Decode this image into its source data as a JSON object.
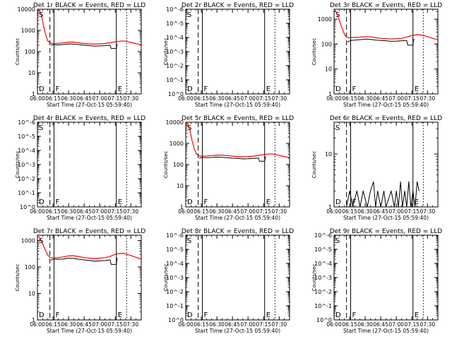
{
  "page": {
    "background": "#ffffff",
    "axis_color": "#000000",
    "events_color": "#000000",
    "lld_color": "#ff0000"
  },
  "shared": {
    "xlabel": "Start Time (27-Oct-15 05:59:40)",
    "ylabel": "Counts/sec",
    "x_ticks": [
      "06:00",
      "06:15",
      "06:30",
      "06:45",
      "07:00",
      "07:15",
      "07:30"
    ],
    "x_range_min": [
      0,
      100
    ],
    "markers": {
      "dashed_min": 12,
      "solid_lines_min": [
        16,
        76
      ],
      "dotted_min": 86,
      "labels": [
        "D",
        "S",
        "F",
        "E"
      ]
    }
  },
  "chart_data": [
    {
      "title": "Det 1r BLACK = Events, RED = LLD",
      "type": "line",
      "y_tick_labels": [
        "1",
        "10",
        "100",
        "1000",
        "10000"
      ],
      "y_log_range": [
        0,
        4
      ],
      "marker_labels": {
        "D": "D",
        "S": "S",
        "F": "F",
        "E": "E"
      },
      "series": [
        {
          "color": "red",
          "x": [
            0,
            2,
            4,
            6,
            8,
            10,
            12,
            14,
            16,
            20,
            25,
            30,
            35,
            40,
            45,
            50,
            55,
            60,
            65,
            70,
            75,
            78,
            82,
            86,
            90,
            95,
            100
          ],
          "y": [
            10000,
            9000,
            5000,
            1500,
            600,
            320,
            260,
            240,
            240,
            245,
            260,
            280,
            280,
            260,
            240,
            230,
            225,
            230,
            240,
            260,
            290,
            300,
            320,
            300,
            270,
            240,
            210
          ]
        },
        {
          "color": "black",
          "x": [
            13,
            16,
            20,
            25,
            30,
            35,
            40,
            45,
            50,
            55,
            60,
            65,
            70,
            71,
            72,
            74,
            75,
            76,
            76.5,
            77
          ],
          "y": [
            200,
            210,
            205,
            215,
            230,
            225,
            210,
            200,
            190,
            180,
            185,
            190,
            200,
            140,
            140,
            140,
            140,
            140,
            200,
            230
          ]
        }
      ]
    },
    {
      "title": "Det 2r BLACK = Events, RED = LLD",
      "type": "line",
      "y_tick_labels": [
        "10^0",
        "10^-1",
        "10^-2",
        "10^-3",
        "10^-4",
        "10^-5",
        "10^-6"
      ],
      "y_log_range": [
        0,
        6
      ],
      "marker_labels": {
        "D": "D",
        "S": "S",
        "F": "F",
        "E": "E"
      },
      "series": []
    },
    {
      "title": "Det 3r BLACK = Events, RED = LLD",
      "type": "line",
      "y_tick_labels": [
        "1",
        "10",
        "100",
        "1000"
      ],
      "y_log_range": [
        0,
        3.4
      ],
      "marker_labels": {
        "D": "D",
        "S": "S",
        "F": "F",
        "E": "E"
      },
      "series": [
        {
          "color": "red",
          "x": [
            0,
            2,
            4,
            6,
            8,
            10,
            12,
            14,
            16,
            20,
            25,
            30,
            35,
            40,
            45,
            50,
            55,
            60,
            65,
            70,
            75,
            78,
            82,
            86,
            90,
            95,
            100
          ],
          "y": [
            2500,
            2000,
            1200,
            700,
            400,
            250,
            190,
            180,
            180,
            185,
            190,
            200,
            195,
            180,
            170,
            165,
            160,
            165,
            170,
            190,
            220,
            230,
            240,
            220,
            200,
            170,
            150
          ]
        },
        {
          "color": "black",
          "x": [
            13,
            16,
            20,
            25,
            30,
            35,
            40,
            45,
            50,
            55,
            60,
            65,
            70,
            71,
            72,
            74,
            75,
            76,
            76.5,
            77
          ],
          "y": [
            120,
            140,
            145,
            150,
            160,
            155,
            145,
            140,
            135,
            130,
            132,
            135,
            140,
            90,
            90,
            90,
            90,
            90,
            140,
            160
          ]
        }
      ]
    },
    {
      "title": "Det 4r BLACK = Events, RED = LLD",
      "type": "line",
      "y_tick_labels": [
        "10^0",
        "10^-1",
        "10^-2",
        "10^-3",
        "10^-4",
        "10^-5",
        "10^-6"
      ],
      "y_log_range": [
        0,
        6
      ],
      "marker_labels": {
        "D": "D",
        "S": "S",
        "F": "F",
        "E": "E"
      },
      "series": []
    },
    {
      "title": "Det 5r BLACK = Events, RED = LLD",
      "type": "line",
      "y_tick_labels": [
        "1",
        "10",
        "100",
        "1000",
        "10000"
      ],
      "y_log_range": [
        0,
        4
      ],
      "marker_labels": {
        "D": "D",
        "S": "S",
        "F": "F",
        "E": "E"
      },
      "series": [
        {
          "color": "red",
          "x": [
            0,
            2,
            4,
            6,
            8,
            10,
            12,
            14,
            16,
            20,
            25,
            30,
            35,
            40,
            45,
            50,
            55,
            60,
            65,
            70,
            75,
            78,
            82,
            86,
            90,
            95,
            100
          ],
          "y": [
            10000,
            8500,
            4500,
            1400,
            600,
            330,
            270,
            250,
            250,
            255,
            265,
            280,
            280,
            265,
            250,
            240,
            235,
            240,
            250,
            270,
            300,
            310,
            320,
            300,
            270,
            240,
            210
          ]
        },
        {
          "color": "black",
          "x": [
            13,
            16,
            20,
            25,
            30,
            35,
            40,
            45,
            50,
            55,
            60,
            65,
            70,
            71,
            72,
            74,
            75,
            76,
            76.5,
            77
          ],
          "y": [
            200,
            215,
            210,
            215,
            225,
            220,
            210,
            200,
            195,
            185,
            188,
            195,
            205,
            145,
            145,
            145,
            145,
            145,
            205,
            240
          ]
        }
      ]
    },
    {
      "title": "Det 6r BLACK = Events, RED = LLD",
      "type": "line",
      "y_tick_labels": [
        "1",
        "10"
      ],
      "y_log_range": [
        0,
        1.6
      ],
      "marker_labels": {
        "D": "D",
        "S": "S",
        "F": "F",
        "E": "E"
      },
      "series": [
        {
          "color": "black",
          "x": [
            12,
            15,
            18,
            22,
            25,
            28,
            32,
            35,
            38,
            40,
            42,
            45,
            48,
            50,
            55,
            58,
            60,
            62,
            64,
            66,
            68,
            70,
            72,
            74,
            76,
            78,
            80,
            82
          ],
          "y": [
            1,
            2,
            1,
            2,
            1,
            2,
            1,
            2,
            3,
            1,
            2,
            1,
            2,
            1,
            2,
            1,
            2,
            1,
            3,
            1,
            2,
            1,
            3,
            1,
            2,
            1,
            3,
            2
          ]
        }
      ]
    },
    {
      "title": "Det 7r BLACK = Events, RED = LLD",
      "type": "line",
      "y_tick_labels": [
        "1",
        "10",
        "100",
        "1000"
      ],
      "y_log_range": [
        0,
        3.2
      ],
      "marker_labels": {
        "D": "D",
        "S": "S",
        "F": "F",
        "E": "E"
      },
      "series": [
        {
          "color": "red",
          "x": [
            0,
            2,
            4,
            6,
            8,
            10,
            12,
            14,
            16,
            20,
            25,
            30,
            35,
            40,
            45,
            50,
            55,
            60,
            65,
            70,
            75,
            78,
            82,
            86,
            90,
            95,
            100
          ],
          "y": [
            1500,
            1300,
            900,
            600,
            400,
            280,
            230,
            220,
            220,
            225,
            240,
            260,
            265,
            245,
            225,
            215,
            210,
            215,
            225,
            250,
            300,
            320,
            330,
            300,
            270,
            230,
            200
          ]
        },
        {
          "color": "black",
          "x": [
            13,
            16,
            20,
            25,
            30,
            35,
            40,
            45,
            50,
            55,
            60,
            65,
            70,
            71,
            72,
            74,
            75,
            76,
            76.5,
            77
          ],
          "y": [
            180,
            200,
            195,
            200,
            215,
            210,
            195,
            185,
            175,
            165,
            170,
            175,
            185,
            125,
            125,
            125,
            125,
            125,
            185,
            220
          ]
        }
      ]
    },
    {
      "title": "Det 8r BLACK = Events, RED = LLD",
      "type": "line",
      "y_tick_labels": [
        "10^0",
        "10^-1",
        "10^-2",
        "10^-3",
        "10^-4",
        "10^-5",
        "10^-6"
      ],
      "y_log_range": [
        0,
        6
      ],
      "marker_labels": {
        "D": "D",
        "S": "S",
        "F": "F",
        "E": "E"
      },
      "series": []
    },
    {
      "title": "Det 9r BLACK = Events, RED = LLD",
      "type": "line",
      "y_tick_labels": [
        "10^0",
        "10^-1",
        "10^-2",
        "10^-3",
        "10^-4",
        "10^-5",
        "10^-6"
      ],
      "y_log_range": [
        0,
        6
      ],
      "marker_labels": {
        "D": "D",
        "S": "S",
        "F": "F",
        "E": "E"
      },
      "series": []
    }
  ]
}
